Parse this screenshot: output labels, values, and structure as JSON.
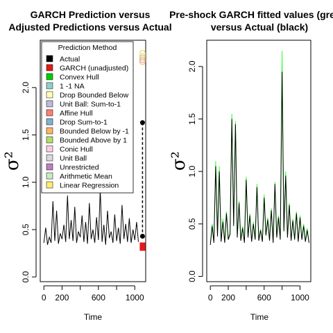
{
  "chart_data": [
    {
      "type": "line",
      "title_lines": [
        "GARCH Prediction versus",
        "Adjusted Predictions versus Actual"
      ],
      "xlabel": "Time",
      "ylabel": "σ²",
      "xlim": [
        -40,
        1120
      ],
      "ylim": [
        -0.05,
        2.5
      ],
      "xticks": [
        0,
        200,
        600,
        1000
      ],
      "xminor": [
        400,
        800
      ],
      "yticks": [
        0.0,
        0.5,
        1.0,
        1.5,
        2.0
      ],
      "ytick_labels": [
        "0.0",
        "0.5",
        "1.0",
        "1.5",
        "2.0"
      ],
      "series": [
        {
          "name": "Actual",
          "color": "#000000",
          "x": [
            0,
            20,
            40,
            60,
            80,
            100,
            120,
            140,
            160,
            180,
            200,
            220,
            240,
            260,
            280,
            300,
            320,
            340,
            360,
            380,
            400,
            420,
            440,
            460,
            480,
            500,
            520,
            540,
            560,
            580,
            600,
            620,
            640,
            660,
            680,
            700,
            720,
            740,
            760,
            780,
            800,
            820,
            840,
            860,
            880,
            900,
            920,
            940,
            960,
            980,
            1000,
            1020,
            1040
          ],
          "y": [
            0.36,
            0.52,
            0.34,
            0.42,
            0.36,
            0.8,
            0.38,
            0.7,
            0.35,
            0.46,
            0.4,
            0.55,
            0.37,
            0.86,
            0.4,
            0.6,
            0.38,
            0.74,
            0.36,
            0.48,
            0.42,
            0.65,
            0.37,
            0.58,
            0.35,
            0.78,
            0.4,
            0.5,
            0.36,
            0.63,
            0.39,
            0.92,
            0.37,
            0.55,
            0.34,
            0.7,
            0.41,
            0.48,
            0.36,
            0.66,
            0.38,
            0.52,
            0.35,
            0.76,
            0.4,
            0.56,
            0.37,
            0.62,
            0.36,
            0.5,
            0.39,
            0.58,
            0.37
          ]
        }
      ],
      "markers": [
        {
          "name": "Actual point",
          "x": 1085,
          "y": 1.63,
          "color": "#000000"
        },
        {
          "name": "Prediction point",
          "x": 1085,
          "y": 0.43,
          "color": "#000000"
        },
        {
          "name": "GARCH (unadjusted)",
          "x": 1085,
          "y": 0.32,
          "color": "#e41a1c"
        },
        {
          "name": "Adjusted cluster",
          "x": 1085,
          "y": 2.32,
          "colors": [
            "#fdbf6f",
            "#ffff99",
            "#b3de69",
            "#cccccc",
            "#fb9a99",
            "#fdb462"
          ]
        }
      ],
      "legend": {
        "title": "Prediction Method",
        "placement": "top-left",
        "entries": [
          {
            "label": "Actual",
            "color": "#000000"
          },
          {
            "label": "GARCH (unadjusted)",
            "color": "#e41a1c"
          },
          {
            "label": "Convex Hull",
            "color": "#00cc00"
          },
          {
            "label": "1 -1 NA",
            "color": "#8dd3c7"
          },
          {
            "label": "Drop Bounded Below",
            "color": "#ffffb3"
          },
          {
            "label": "Unit Ball: Sum-to-1",
            "color": "#bebada"
          },
          {
            "label": "Affine Hull",
            "color": "#fb8072"
          },
          {
            "label": "Drop Sum-to-1",
            "color": "#80b1d3"
          },
          {
            "label": "Bounded Below by -1",
            "color": "#fdb462"
          },
          {
            "label": "Bounded Above by 1",
            "color": "#b3de69"
          },
          {
            "label": "Conic Hull",
            "color": "#fccde5"
          },
          {
            "label": "Unit Ball",
            "color": "#d9d9d9"
          },
          {
            "label": "Unrestricted",
            "color": "#bc80bd"
          },
          {
            "label": "Arithmetic Mean",
            "color": "#ccebc5"
          },
          {
            "label": "Linear Regression",
            "color": "#ffed6f"
          }
        ]
      }
    },
    {
      "type": "line",
      "title_lines": [
        "Pre-shock GARCH fitted values (green)",
        "versus Actual (black)"
      ],
      "xlabel": "Time",
      "ylabel": "σ²",
      "xlim": [
        -40,
        1120
      ],
      "ylim": [
        -0.05,
        2.25
      ],
      "xticks": [
        0,
        200,
        600,
        1000
      ],
      "xminor": [
        400,
        800
      ],
      "yticks": [
        0.0,
        0.5,
        1.0,
        1.5,
        2.0
      ],
      "ytick_labels": [
        "0.0",
        "0.5",
        "1.0",
        "1.5",
        "2.0"
      ],
      "series": [
        {
          "name": "GARCH fitted",
          "color": "#33ff33",
          "x": [
            0,
            20,
            40,
            60,
            80,
            100,
            120,
            140,
            160,
            180,
            200,
            220,
            240,
            260,
            280,
            300,
            320,
            340,
            360,
            380,
            400,
            420,
            440,
            460,
            480,
            500,
            520,
            540,
            560,
            580,
            600,
            620,
            640,
            660,
            680,
            700,
            720,
            740,
            760,
            780,
            800,
            820,
            840,
            860,
            880,
            900,
            920,
            940,
            960,
            980,
            1000,
            1020,
            1040,
            1060,
            1080,
            1100
          ],
          "y": [
            0.32,
            0.5,
            0.33,
            1.1,
            0.4,
            1.05,
            0.34,
            0.55,
            0.33,
            0.62,
            0.36,
            0.42,
            1.55,
            0.5,
            1.48,
            0.38,
            0.72,
            0.35,
            0.48,
            0.33,
            0.95,
            0.38,
            0.6,
            0.34,
            0.52,
            0.36,
            0.88,
            0.35,
            0.45,
            0.34,
            0.78,
            0.4,
            0.56,
            0.35,
            0.65,
            0.33,
            0.9,
            0.38,
            0.58,
            0.36,
            2.15,
            0.45,
            1.0,
            0.38,
            0.7,
            0.35,
            0.55,
            0.36,
            0.62,
            0.34,
            0.58,
            0.36,
            0.5,
            0.34,
            0.46,
            0.33
          ]
        },
        {
          "name": "Actual",
          "color": "#000000",
          "x": [
            0,
            20,
            40,
            60,
            80,
            100,
            120,
            140,
            160,
            180,
            200,
            220,
            240,
            260,
            280,
            300,
            320,
            340,
            360,
            380,
            400,
            420,
            440,
            460,
            480,
            500,
            520,
            540,
            560,
            580,
            600,
            620,
            640,
            660,
            680,
            700,
            720,
            740,
            760,
            780,
            800,
            820,
            840,
            860,
            880,
            900,
            920,
            940,
            960,
            980,
            1000,
            1020,
            1040,
            1060,
            1080,
            1100
          ],
          "y": [
            0.3,
            0.48,
            0.32,
            1.05,
            0.38,
            1.0,
            0.33,
            0.52,
            0.32,
            0.6,
            0.35,
            0.4,
            1.5,
            0.48,
            1.45,
            0.37,
            0.7,
            0.34,
            0.46,
            0.32,
            0.92,
            0.37,
            0.58,
            0.33,
            0.5,
            0.35,
            0.85,
            0.34,
            0.44,
            0.33,
            0.75,
            0.39,
            0.54,
            0.34,
            0.63,
            0.32,
            0.88,
            0.37,
            0.56,
            0.35,
            1.95,
            0.43,
            0.96,
            0.37,
            0.68,
            0.34,
            0.53,
            0.35,
            0.6,
            0.33,
            0.56,
            0.35,
            0.48,
            0.33,
            0.44,
            0.32
          ]
        }
      ]
    }
  ]
}
